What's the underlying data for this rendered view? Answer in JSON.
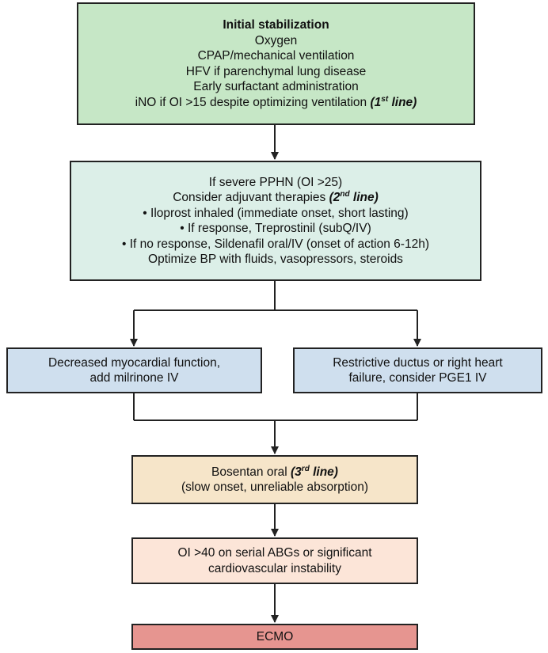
{
  "box1": {
    "title": "Initial stabilization",
    "lines": [
      "Oxygen",
      "CPAP/mechanical ventilation",
      "HFV if parenchymal lung disease",
      "Early surfactant administration"
    ],
    "last_line": "iNO if OI >15 despite optimizing ventilation ",
    "tag": "(1",
    "tag_sup": "st",
    "tag_end": " line)"
  },
  "box2": {
    "line1": "If severe PPHN (OI >25)",
    "line2": "Consider adjuvant therapies ",
    "tag": "(2",
    "tag_sup": "nd",
    "tag_end": " line)",
    "lines": [
      "• Iloprost inhaled (immediate onset, short lasting)",
      "• If response, Treprostinil (subQ/IV)",
      "• If no response, Sildenafil oral/IV (onset of action 6-12h)",
      "Optimize BP with fluids, vasopressors, steroids"
    ]
  },
  "box3": {
    "lines": [
      "Decreased myocardial function,",
      "add milrinone IV"
    ]
  },
  "box4": {
    "lines": [
      "Restrictive ductus or right heart",
      "failure, consider PGE1 IV"
    ]
  },
  "box5": {
    "line1": "Bosentan oral ",
    "tag": "(3",
    "tag_sup": "rd",
    "tag_end": " line)",
    "line2": "(slow onset, unreliable absorption)"
  },
  "box6": {
    "lines": [
      "OI >40 on serial ABGs or significant",
      "cardiovascular instability"
    ]
  },
  "box7": {
    "label": "ECMO"
  }
}
